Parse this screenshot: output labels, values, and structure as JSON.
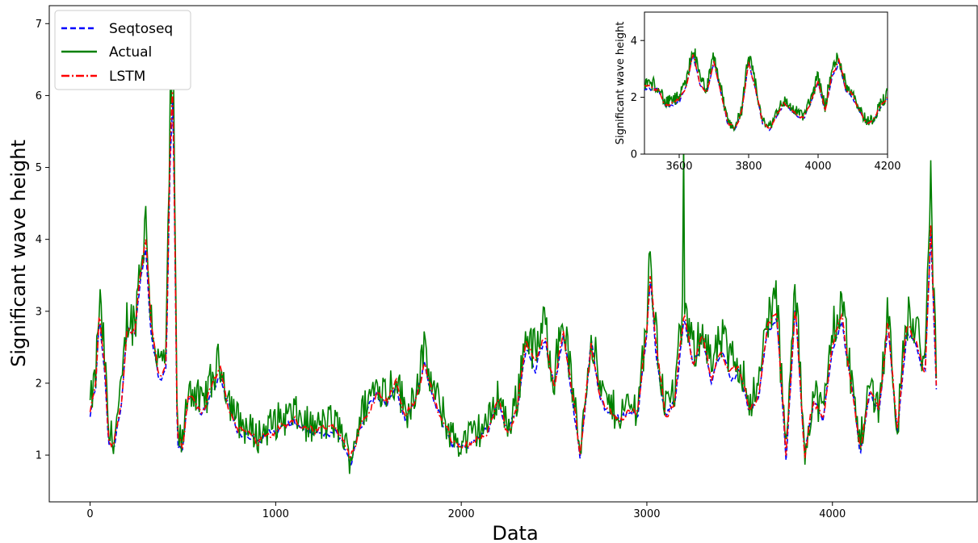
{
  "chart_data": [
    {
      "type": "line",
      "title": "",
      "xlabel": "Data",
      "ylabel": "Significant wave height",
      "xlim": [
        -220,
        4780
      ],
      "ylim": [
        0.35,
        7.25
      ],
      "xticks": [
        0,
        1000,
        2000,
        3000,
        4000
      ],
      "yticks": [
        1,
        2,
        3,
        4,
        5,
        6,
        7
      ],
      "legend_position": "top-left",
      "grid": false,
      "keypoints": [
        [
          0,
          1.6
        ],
        [
          30,
          2.0
        ],
        [
          50,
          3.0
        ],
        [
          80,
          2.2
        ],
        [
          100,
          1.2
        ],
        [
          130,
          1.2
        ],
        [
          170,
          1.8
        ],
        [
          200,
          2.8
        ],
        [
          240,
          2.7
        ],
        [
          270,
          3.5
        ],
        [
          300,
          4.0
        ],
        [
          330,
          2.8
        ],
        [
          370,
          2.1
        ],
        [
          410,
          2.3
        ],
        [
          430,
          5.2
        ],
        [
          445,
          6.2
        ],
        [
          455,
          4.5
        ],
        [
          470,
          1.2
        ],
        [
          500,
          1.1
        ],
        [
          530,
          1.9
        ],
        [
          560,
          1.8
        ],
        [
          600,
          1.6
        ],
        [
          650,
          1.9
        ],
        [
          700,
          2.2
        ],
        [
          750,
          1.7
        ],
        [
          800,
          1.4
        ],
        [
          850,
          1.3
        ],
        [
          900,
          1.2
        ],
        [
          1000,
          1.4
        ],
        [
          1100,
          1.5
        ],
        [
          1200,
          1.3
        ],
        [
          1300,
          1.4
        ],
        [
          1350,
          1.3
        ],
        [
          1400,
          0.9
        ],
        [
          1450,
          1.4
        ],
        [
          1500,
          1.7
        ],
        [
          1550,
          1.9
        ],
        [
          1600,
          1.8
        ],
        [
          1650,
          2.0
        ],
        [
          1700,
          1.5
        ],
        [
          1750,
          1.8
        ],
        [
          1800,
          2.3
        ],
        [
          1850,
          1.8
        ],
        [
          1900,
          1.5
        ],
        [
          1950,
          1.2
        ],
        [
          2000,
          1.1
        ],
        [
          2050,
          1.2
        ],
        [
          2100,
          1.3
        ],
        [
          2150,
          1.4
        ],
        [
          2200,
          1.8
        ],
        [
          2250,
          1.3
        ],
        [
          2300,
          1.7
        ],
        [
          2350,
          2.6
        ],
        [
          2400,
          2.3
        ],
        [
          2450,
          2.7
        ],
        [
          2500,
          2.0
        ],
        [
          2550,
          2.8
        ],
        [
          2600,
          1.8
        ],
        [
          2640,
          1.0
        ],
        [
          2700,
          2.6
        ],
        [
          2750,
          1.8
        ],
        [
          2800,
          1.6
        ],
        [
          2850,
          1.5
        ],
        [
          2900,
          1.6
        ],
        [
          2950,
          1.6
        ],
        [
          3000,
          2.8
        ],
        [
          3020,
          3.6
        ],
        [
          3050,
          2.5
        ],
        [
          3100,
          1.6
        ],
        [
          3150,
          1.8
        ],
        [
          3200,
          3.0
        ],
        [
          3250,
          2.3
        ],
        [
          3300,
          2.7
        ],
        [
          3350,
          2.1
        ],
        [
          3400,
          2.5
        ],
        [
          3450,
          2.2
        ],
        [
          3500,
          2.2
        ],
        [
          3550,
          1.7
        ],
        [
          3600,
          1.8
        ],
        [
          3650,
          2.8
        ],
        [
          3700,
          3.0
        ],
        [
          3750,
          1.0
        ],
        [
          3800,
          3.2
        ],
        [
          3850,
          1.0
        ],
        [
          3900,
          1.8
        ],
        [
          3950,
          1.5
        ],
        [
          4000,
          2.6
        ],
        [
          4050,
          3.0
        ],
        [
          4100,
          2.0
        ],
        [
          4150,
          1.1
        ],
        [
          4200,
          1.9
        ],
        [
          4250,
          1.6
        ],
        [
          4300,
          2.9
        ],
        [
          4350,
          1.3
        ],
        [
          4400,
          2.8
        ],
        [
          4450,
          2.6
        ],
        [
          4500,
          2.2
        ],
        [
          4530,
          4.3
        ],
        [
          4560,
          2.0
        ]
      ],
      "series": [
        {
          "name": "Seqtoseq",
          "color": "#0000ff",
          "style": "dashed"
        },
        {
          "name": "Actual",
          "color": "#008000",
          "style": "solid"
        },
        {
          "name": "LSTM",
          "color": "#ff0000",
          "style": "dashdot"
        }
      ]
    },
    {
      "type": "line",
      "title": "",
      "xlabel": "",
      "ylabel": "Significant wave height",
      "xlim": [
        3500,
        4200
      ],
      "ylim": [
        0,
        5
      ],
      "xticks": [
        3600,
        3800,
        4000,
        4200
      ],
      "yticks": [
        0,
        2,
        4
      ],
      "grid": false,
      "keypoints": [
        [
          3500,
          2.4
        ],
        [
          3540,
          2.3
        ],
        [
          3560,
          1.7
        ],
        [
          3600,
          1.9
        ],
        [
          3620,
          2.4
        ],
        [
          3640,
          3.6
        ],
        [
          3660,
          2.5
        ],
        [
          3680,
          2.2
        ],
        [
          3700,
          3.3
        ],
        [
          3720,
          2.2
        ],
        [
          3740,
          1.1
        ],
        [
          3760,
          0.9
        ],
        [
          3780,
          1.5
        ],
        [
          3800,
          3.3
        ],
        [
          3820,
          2.3
        ],
        [
          3840,
          1.1
        ],
        [
          3860,
          0.9
        ],
        [
          3880,
          1.4
        ],
        [
          3900,
          1.8
        ],
        [
          3920,
          1.6
        ],
        [
          3940,
          1.4
        ],
        [
          3960,
          1.3
        ],
        [
          3980,
          1.9
        ],
        [
          4000,
          2.6
        ],
        [
          4020,
          1.6
        ],
        [
          4040,
          2.8
        ],
        [
          4060,
          3.3
        ],
        [
          4080,
          2.3
        ],
        [
          4100,
          2.1
        ],
        [
          4120,
          1.5
        ],
        [
          4140,
          1.1
        ],
        [
          4160,
          1.2
        ],
        [
          4180,
          1.7
        ],
        [
          4200,
          2.0
        ]
      ]
    }
  ]
}
